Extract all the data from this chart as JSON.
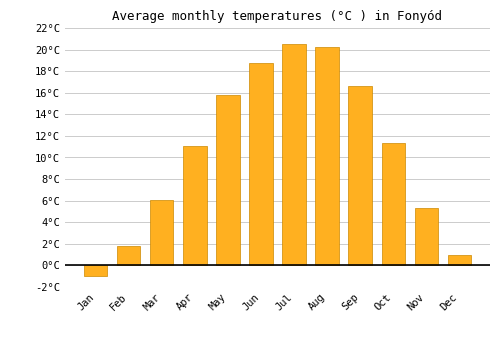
{
  "months": [
    "Jan",
    "Feb",
    "Mar",
    "Apr",
    "May",
    "Jun",
    "Jul",
    "Aug",
    "Sep",
    "Oct",
    "Nov",
    "Dec"
  ],
  "values": [
    -1.0,
    1.8,
    6.1,
    11.1,
    15.8,
    18.8,
    20.5,
    20.2,
    16.6,
    11.3,
    5.3,
    1.0
  ],
  "bar_color": "#FFB020",
  "bar_edge_color": "#CC8800",
  "title": "Average monthly temperatures (°C ) in Fonyód",
  "ylim": [
    -2,
    22
  ],
  "yticks": [
    -2,
    0,
    2,
    4,
    6,
    8,
    10,
    12,
    14,
    16,
    18,
    20,
    22
  ],
  "background_color": "#ffffff",
  "grid_color": "#cccccc",
  "title_fontsize": 9,
  "tick_fontsize": 7.5,
  "font_family": "monospace"
}
